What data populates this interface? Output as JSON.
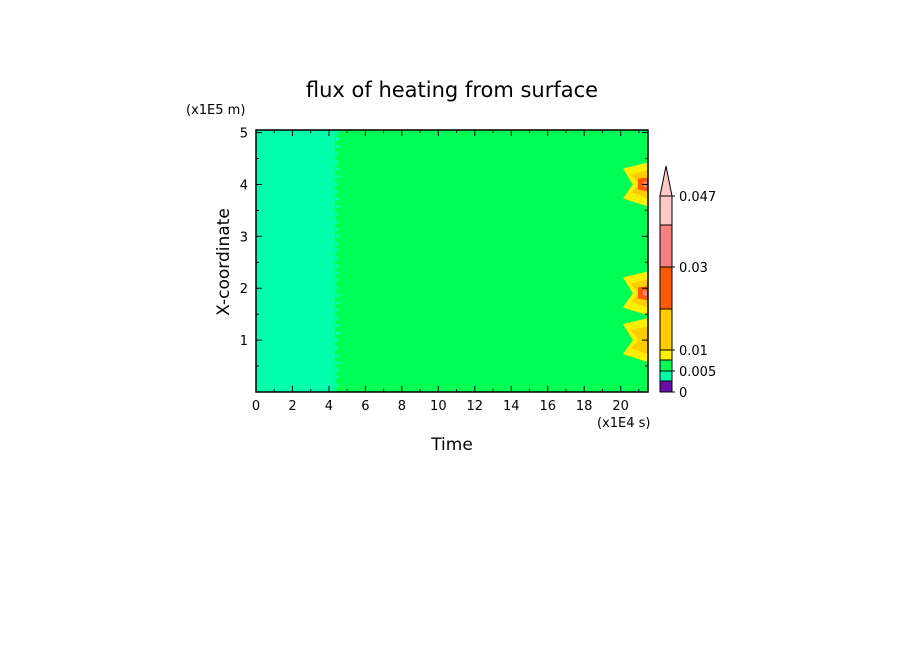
{
  "chart_data": {
    "type": "heatmap",
    "title": "flux of heating from surface",
    "xlabel": "Time",
    "ylabel": "X-coordinate",
    "x_unit": "(x1E4 s)",
    "y_unit": "(x1E5 m)",
    "xlim": [
      0,
      21.5
    ],
    "ylim": [
      0,
      5.05
    ],
    "x_ticks": [
      0,
      2,
      4,
      6,
      8,
      10,
      12,
      14,
      16,
      18,
      20
    ],
    "y_ticks": [
      1,
      2,
      3,
      4,
      5
    ],
    "colorbar": {
      "levels": [
        0,
        0.005,
        0.01,
        0.03,
        0.047
      ],
      "tick_labels": [
        "0",
        "0.005",
        "0.01",
        "0.03",
        "0.047"
      ],
      "colors": [
        "#6a0dad",
        "#00ffaa",
        "#00ff55",
        "#ffee00",
        "#ffcc00",
        "#ff5a00",
        "#f88080",
        "#ffc8c8"
      ],
      "extend": "max"
    },
    "regions": [
      {
        "x": [
          0,
          4.3
        ],
        "value_range": [
          0.005,
          0.0075
        ]
      },
      {
        "x": [
          4.3,
          21.5
        ],
        "value_range": [
          0.0075,
          0.01
        ]
      }
    ],
    "hotspots": [
      {
        "x": 21.0,
        "y": 4.0,
        "peak": 0.03
      },
      {
        "x": 21.0,
        "y": 1.9,
        "peak": 0.03
      },
      {
        "x": 21.0,
        "y": 1.0,
        "peak": 0.012
      }
    ]
  }
}
